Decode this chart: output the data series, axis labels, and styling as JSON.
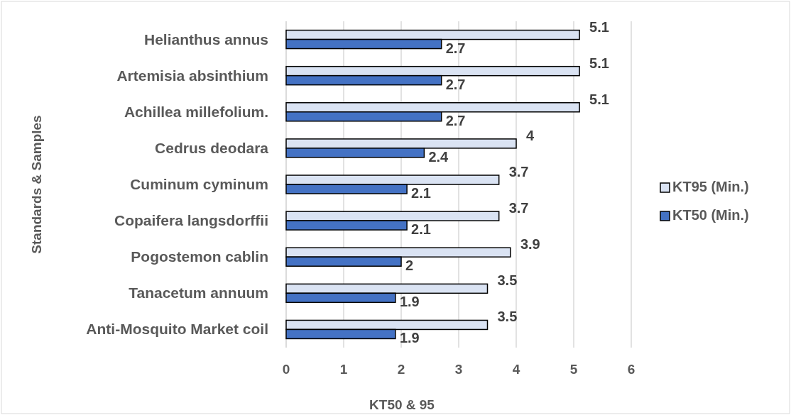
{
  "chart_data": {
    "type": "bar",
    "orientation": "horizontal",
    "xlabel": "KT50 & 95",
    "ylabel": "Standards & Samples",
    "categories": [
      "Helianthus annus",
      "Artemisia absinthium",
      "Achillea millefolium.",
      "Cedrus deodara",
      "Cuminum cyminum",
      "Copaifera langsdorffii",
      "Pogostemon cablin",
      "Tanacetum annuum",
      "Anti-Mosquito Market coil"
    ],
    "series": [
      {
        "name": "KT95 (Min.)",
        "color": "#dae3f3",
        "values": [
          5.1,
          5.1,
          5.1,
          4,
          3.7,
          3.7,
          3.9,
          3.5,
          3.5
        ]
      },
      {
        "name": "KT50 (Min.)",
        "color": "#4472c4",
        "values": [
          2.7,
          2.7,
          2.7,
          2.4,
          2.1,
          2.1,
          2,
          1.9,
          1.9
        ]
      }
    ],
    "xlim": [
      0,
      6
    ],
    "xticks": [
      0,
      1,
      2,
      3,
      4,
      5,
      6
    ],
    "grid": "x",
    "legend": "right",
    "data_labels": true
  }
}
